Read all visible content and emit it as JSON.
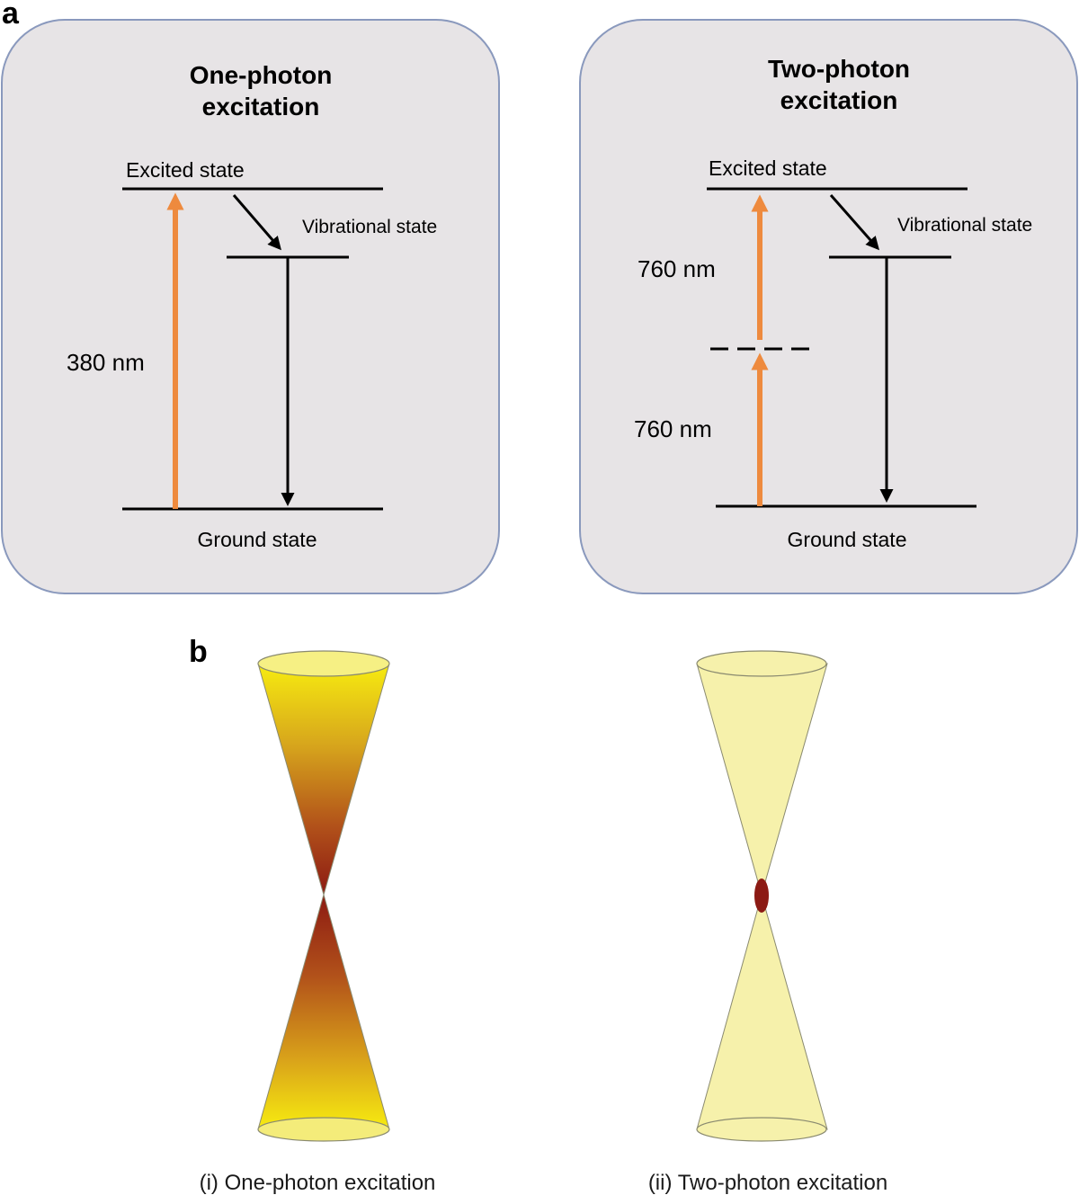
{
  "panel_a": {
    "letter": "a",
    "one_photon": {
      "title_line1": "One-photon",
      "title_line2": "excitation",
      "excited_label": "Excited state",
      "vibrational_label": "Vibrational state",
      "ground_label": "Ground state",
      "wavelength_label": "380 nm"
    },
    "two_photon": {
      "title_line1": "Two-photon",
      "title_line2": "excitation",
      "excited_label": "Excited state",
      "vibrational_label": "Vibrational state",
      "ground_label": "Ground state",
      "wavelength_upper_label": "760 nm",
      "wavelength_lower_label": "760 nm"
    }
  },
  "panel_b": {
    "letter": "b",
    "caption_one": "(i) One-photon excitation",
    "caption_two": "(ii) Two-photon excitation"
  },
  "colors": {
    "box_fill": "#e7e4e6",
    "box_stroke": "#8a99bd",
    "excitation_arrow": "#ee8a3e",
    "cone_light": "#f5f0a8",
    "cone_bright": "#f2e313",
    "cone_dark": "#9a1d12",
    "focal_spot": "#8c1a14"
  }
}
